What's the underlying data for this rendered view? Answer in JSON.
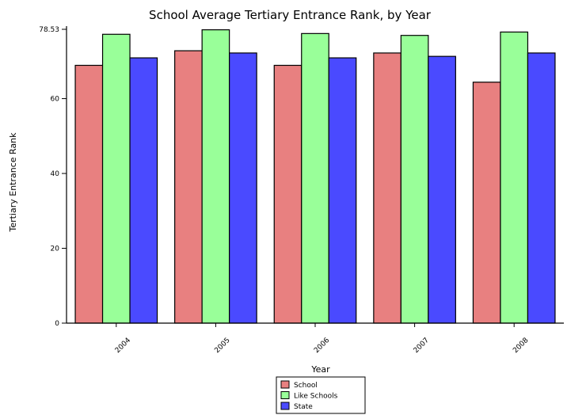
{
  "chart_data": {
    "type": "bar",
    "title": "School Average Tertiary Entrance Rank, by Year",
    "xlabel": "Year",
    "ylabel": "Tertiary Entrance Rank",
    "categories": [
      "2004",
      "2005",
      "2006",
      "2007",
      "2008"
    ],
    "series": [
      {
        "name": "School",
        "color": "#e88080",
        "values": [
          68.9,
          72.8,
          68.9,
          72.2,
          64.4
        ]
      },
      {
        "name": "Like Schools",
        "color": "#99ff99",
        "values": [
          77.2,
          78.4,
          77.4,
          76.9,
          77.8
        ]
      },
      {
        "name": "State",
        "color": "#4a4aff",
        "values": [
          70.9,
          72.2,
          70.9,
          71.3,
          72.2
        ]
      }
    ],
    "yticks": [
      0,
      20,
      40,
      60,
      78.53
    ],
    "ylim": [
      0,
      78.53
    ],
    "grid": false,
    "legend_position": "bottom-center"
  }
}
